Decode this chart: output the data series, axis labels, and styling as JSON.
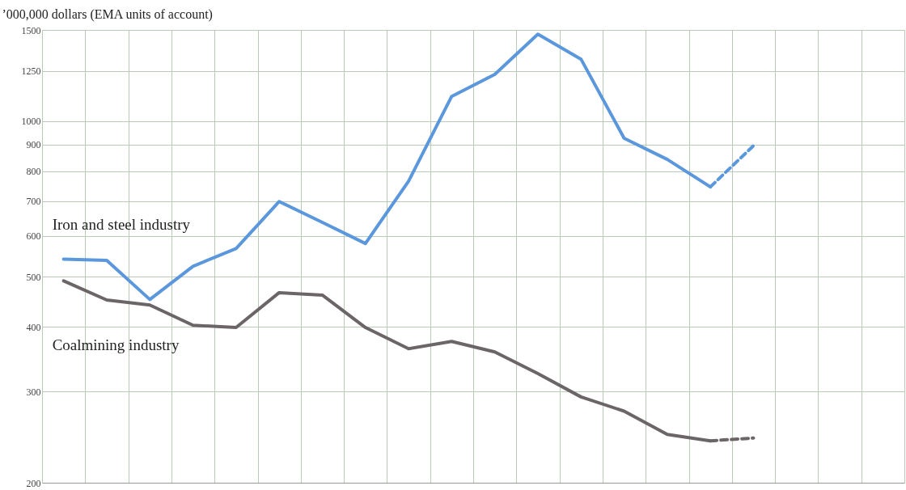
{
  "chart_data": {
    "type": "line",
    "ylabel": "’000,000 dollars (EMA units of account)",
    "categories": [
      null,
      null,
      null,
      null,
      null,
      null,
      null,
      null,
      null,
      null,
      null,
      null,
      null,
      null,
      null,
      null,
      null,
      null,
      null,
      null
    ],
    "series": [
      {
        "name": "Iron and steel industry",
        "color": "#5a97dc",
        "line_style": "solid",
        "values": [
          541,
          538,
          452,
          524,
          567,
          699,
          637,
          580,
          765,
          1116,
          1231,
          1472,
          1317,
          926,
          843,
          746,
          null,
          null,
          null,
          null
        ]
      },
      {
        "color": "#5a97dc",
        "line_style": "dashed",
        "values": [
          null,
          null,
          null,
          null,
          null,
          null,
          null,
          null,
          null,
          null,
          null,
          null,
          null,
          null,
          null,
          746,
          896,
          null,
          null,
          null
        ]
      },
      {
        "name": "Coalmining industry",
        "color": "#6b6567",
        "line_style": "solid",
        "values": [
          491,
          451,
          441,
          403,
          399,
          466,
          461,
          399,
          363,
          375,
          358,
          325,
          293,
          275,
          248,
          241,
          null,
          null,
          null,
          null
        ]
      },
      {
        "color": "#6b6567",
        "line_style": "dashed",
        "values": [
          null,
          null,
          null,
          null,
          null,
          null,
          null,
          null,
          null,
          null,
          null,
          null,
          null,
          null,
          null,
          241,
          244,
          null,
          null,
          null
        ]
      }
    ],
    "log": "y",
    "ylim": [
      200,
      1500
    ],
    "yticks": [
      200,
      300,
      400,
      500,
      600,
      700,
      800,
      900,
      1000,
      1250,
      1500
    ],
    "grid": true,
    "legend": false,
    "tick_labels": "y"
  }
}
